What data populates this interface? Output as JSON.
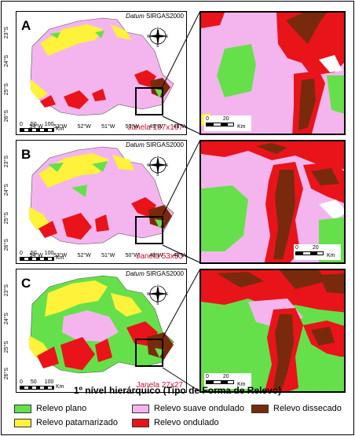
{
  "datum": {
    "label": "Datum",
    "value": "SIRGAS2000"
  },
  "lon_ticks": [
    "54°W",
    "53°W",
    "52°W",
    "51°W",
    "50°W",
    "49°W",
    "48°W"
  ],
  "lat_ticks": [
    "23°S",
    "24°S",
    "25°S",
    "26°S"
  ],
  "scale": {
    "labels": [
      "0",
      "50",
      "100"
    ],
    "unit": "Km"
  },
  "inset_scale": {
    "labels": [
      "0",
      "20"
    ],
    "unit": "Km"
  },
  "compass": {
    "n": "N",
    "s": "S",
    "e": "E",
    "w": "W"
  },
  "panels": [
    {
      "letter": "A",
      "window_label": "Janela 107x107"
    },
    {
      "letter": "B",
      "window_label": "Janela 53x53"
    },
    {
      "letter": "C",
      "window_label": "Janela 27x27"
    }
  ],
  "legend": {
    "title": "1º nível hierárquico (Tipo de Forma de Relevo)",
    "items": [
      {
        "label": "Relevo plano",
        "color": "#66e04a"
      },
      {
        "label": "Relevo patamarizado",
        "color": "#fff23a"
      },
      {
        "label": "Relevo suave ondulado",
        "color": "#f4b5ef"
      },
      {
        "label": "Relevo ondulado",
        "color": "#e8141a"
      },
      {
        "label": "Relevo dissecado",
        "color": "#7a2a0c"
      }
    ]
  }
}
